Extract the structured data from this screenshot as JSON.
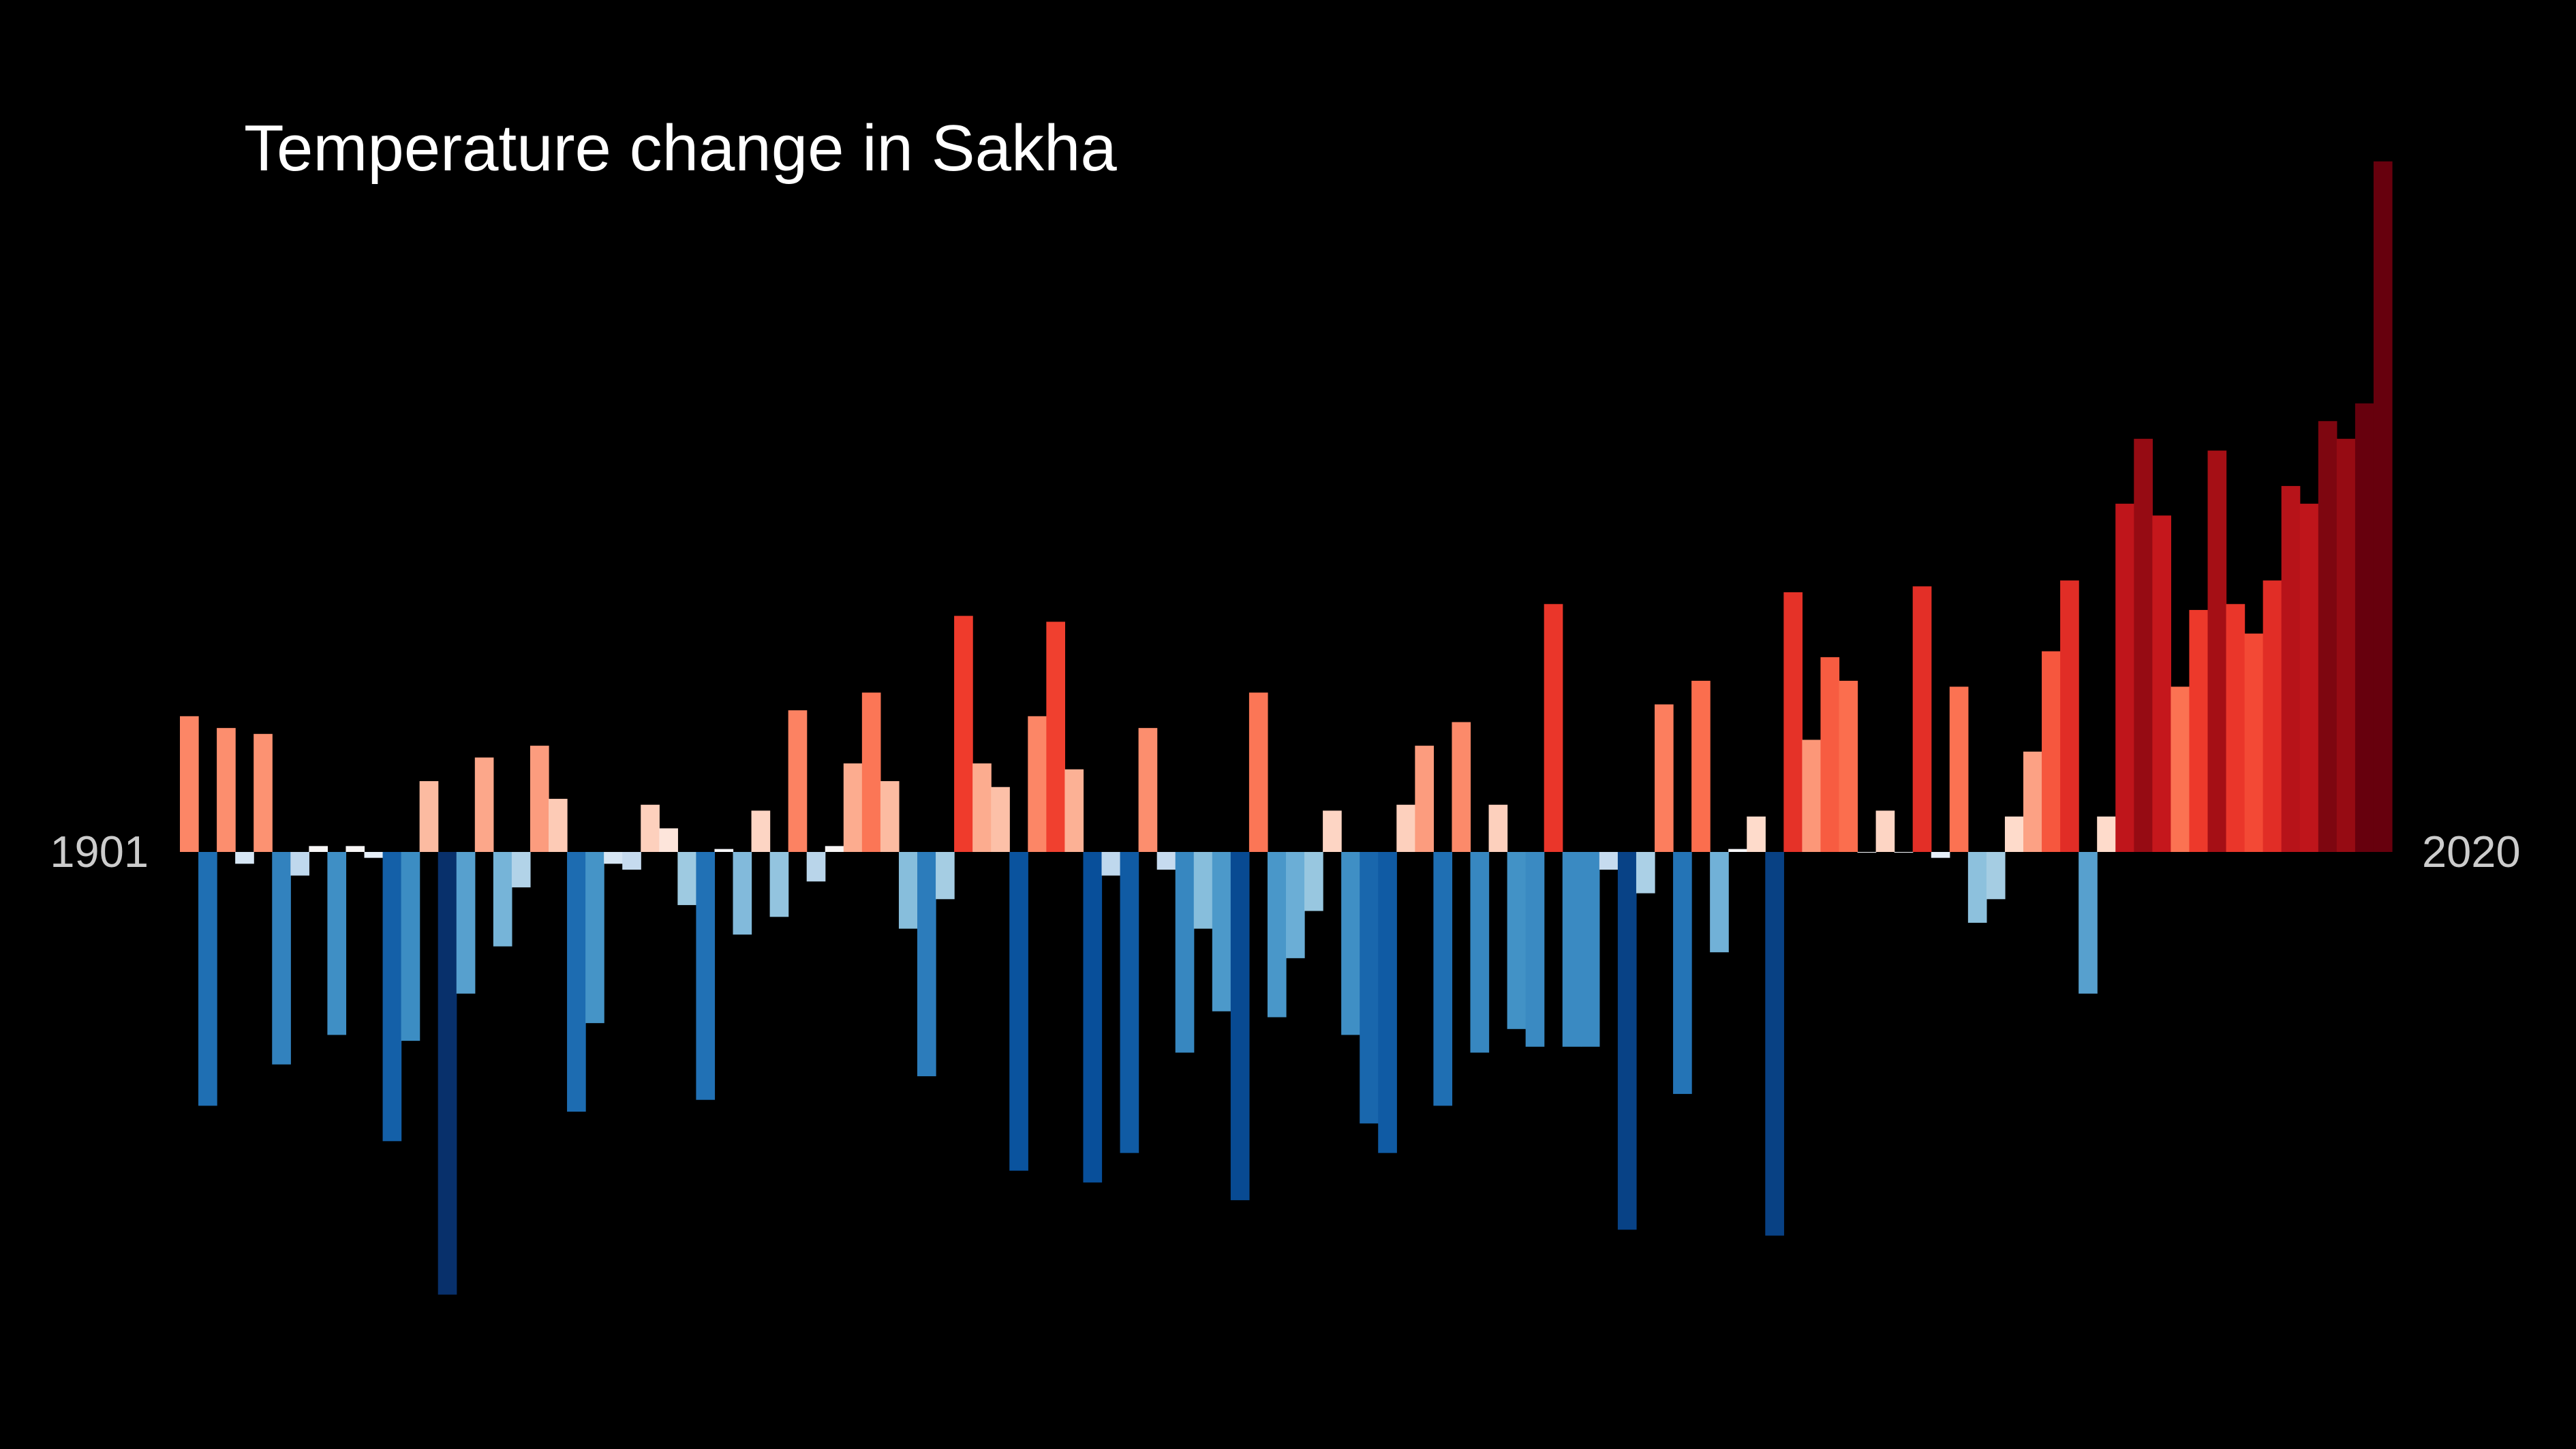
{
  "chart_data": {
    "type": "bar",
    "title": "Temperature change in Sakha",
    "start_year_label": "1901",
    "end_year_label": "2020",
    "start_year": 1901,
    "end_year": 2020,
    "ylim": [
      -0.75,
      1.17
    ],
    "color_scale": {
      "cold": "#08306b",
      "neutral": "#f7fbff",
      "warm": "#67000d"
    },
    "values": [
      0.23,
      -0.43,
      0.21,
      -0.02,
      0.2,
      -0.36,
      -0.04,
      0.01,
      -0.31,
      0.01,
      -0.01,
      -0.49,
      -0.32,
      0.12,
      -0.75,
      -0.24,
      0.16,
      -0.16,
      -0.06,
      0.18,
      0.09,
      -0.44,
      -0.29,
      -0.02,
      -0.03,
      0.08,
      0.04,
      -0.09,
      -0.42,
      0.005,
      -0.14,
      0.07,
      -0.11,
      0.24,
      -0.05,
      0.01,
      0.15,
      0.27,
      0.12,
      -0.13,
      -0.38,
      -0.08,
      0.4,
      0.15,
      0.11,
      -0.54,
      0.23,
      0.39,
      0.14,
      -0.56,
      -0.04,
      -0.51,
      0.21,
      -0.03,
      -0.34,
      -0.13,
      -0.27,
      -0.59,
      0.27,
      -0.28,
      -0.18,
      -0.1,
      0.07,
      -0.31,
      -0.46,
      -0.51,
      0.08,
      0.18,
      -0.43,
      0.22,
      -0.34,
      0.08,
      -0.3,
      -0.33,
      0.42,
      -0.33,
      -0.33,
      -0.03,
      -0.64,
      -0.07,
      0.25,
      -0.41,
      0.29,
      -0.17,
      0.005,
      0.06,
      -0.65,
      0.44,
      0.19,
      0.33,
      0.29,
      0.0,
      0.07,
      0.0,
      0.45,
      -0.01,
      0.28,
      -0.12,
      -0.08,
      0.06,
      0.17,
      0.34,
      0.46,
      -0.24,
      0.06,
      0.59,
      0.7,
      0.57,
      0.28,
      0.41,
      0.68,
      0.42,
      0.37,
      0.46,
      0.62,
      0.59,
      0.73,
      0.7,
      0.76,
      1.17
    ]
  }
}
